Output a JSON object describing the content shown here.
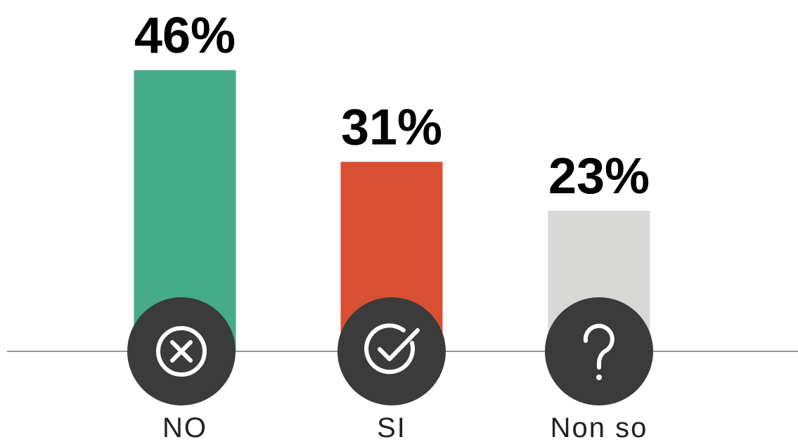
{
  "chart_data": {
    "type": "bar",
    "categories": [
      "NO",
      "SI",
      "Non so"
    ],
    "values": [
      46,
      31,
      23
    ],
    "value_labels": [
      "46%",
      "31%",
      "23%"
    ],
    "colors": [
      "#45ab88",
      "#d94f33",
      "#d8d8d6"
    ]
  }
}
